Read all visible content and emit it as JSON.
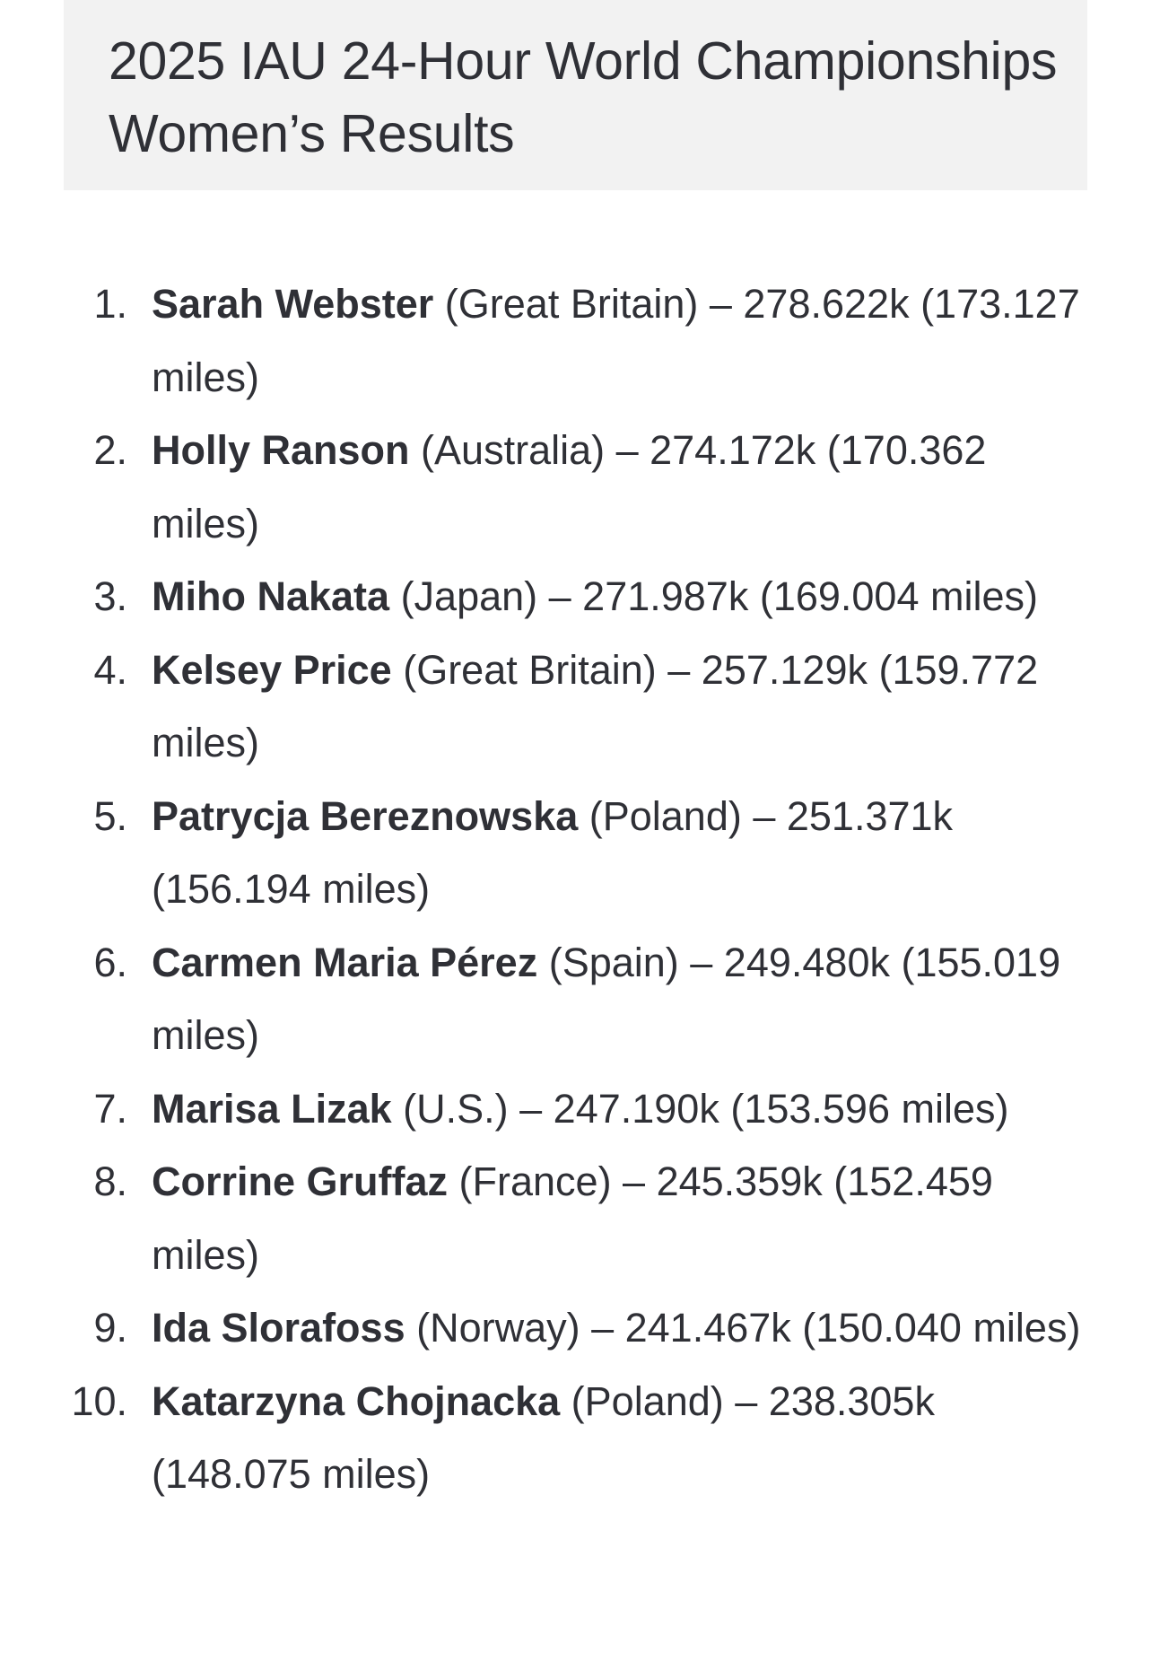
{
  "header": {
    "title": "2025 IAU 24-Hour World Championships Women’s Results"
  },
  "results": [
    {
      "rank": "1.",
      "name": "Sarah Webster",
      "rest": " (Great Britain) – 278.622k (173.127 miles)"
    },
    {
      "rank": "2.",
      "name": "Holly Ranson",
      "rest": " (Australia) – 274.172k (170.362 miles)"
    },
    {
      "rank": "3.",
      "name": "Miho Nakata",
      "rest": " (Japan) – 271.987k (169.004 miles)"
    },
    {
      "rank": "4.",
      "name": "Kelsey Price",
      "rest": " (Great Britain) – 257.129k (159.772 miles)"
    },
    {
      "rank": "5.",
      "name": "Patrycja Bereznowska",
      "rest": " (Poland) – 251.371k (156.194 miles)"
    },
    {
      "rank": "6.",
      "name": "Carmen Maria Pérez",
      "rest": " (Spain) – 249.480k (155.019 miles)"
    },
    {
      "rank": "7.",
      "name": "Marisa Lizak",
      "rest": " (U.S.) – 247.190k (153.596 miles)"
    },
    {
      "rank": "8.",
      "name": "Corrine Gruffaz",
      "rest": " (France) – 245.359k (152.459 miles)"
    },
    {
      "rank": "9.",
      "name": "Ida Slorafoss",
      "rest": " (Norway) – 241.467k (150.040 miles)"
    },
    {
      "rank": "10.",
      "name": "Katarzyna Chojnacka",
      "rest": " (Poland) – 238.305k (148.075 miles)"
    }
  ]
}
